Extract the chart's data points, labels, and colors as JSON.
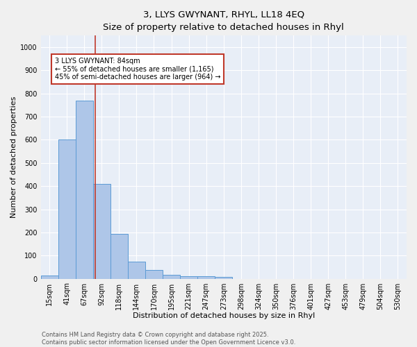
{
  "title1": "3, LLYS GWYNANT, RHYL, LL18 4EQ",
  "title2": "Size of property relative to detached houses in Rhyl",
  "xlabel": "Distribution of detached houses by size in Rhyl",
  "ylabel": "Number of detached properties",
  "categories": [
    "15sqm",
    "41sqm",
    "67sqm",
    "92sqm",
    "118sqm",
    "144sqm",
    "170sqm",
    "195sqm",
    "221sqm",
    "247sqm",
    "273sqm",
    "298sqm",
    "324sqm",
    "350sqm",
    "376sqm",
    "401sqm",
    "427sqm",
    "453sqm",
    "479sqm",
    "504sqm",
    "530sqm"
  ],
  "values": [
    15,
    600,
    770,
    410,
    193,
    75,
    38,
    18,
    10,
    12,
    8,
    0,
    0,
    0,
    0,
    0,
    0,
    0,
    0,
    0,
    0
  ],
  "bar_color": "#aec6e8",
  "bar_edge_color": "#5b9bd5",
  "background_color": "#e8eef7",
  "grid_color": "#ffffff",
  "vline_x": 2.62,
  "vline_color": "#c0392b",
  "annotation_text": "3 LLYS GWYNANT: 84sqm\n← 55% of detached houses are smaller (1,165)\n45% of semi-detached houses are larger (964) →",
  "annotation_box_color": "#c0392b",
  "ylim": [
    0,
    1050
  ],
  "yticks": [
    0,
    100,
    200,
    300,
    400,
    500,
    600,
    700,
    800,
    900,
    1000
  ],
  "footer1": "Contains HM Land Registry data © Crown copyright and database right 2025.",
  "footer2": "Contains public sector information licensed under the Open Government Licence v3.0.",
  "title_fontsize": 9.5,
  "subtitle_fontsize": 8.5,
  "tick_fontsize": 7,
  "label_fontsize": 8,
  "annotation_fontsize": 7,
  "footer_fontsize": 6
}
